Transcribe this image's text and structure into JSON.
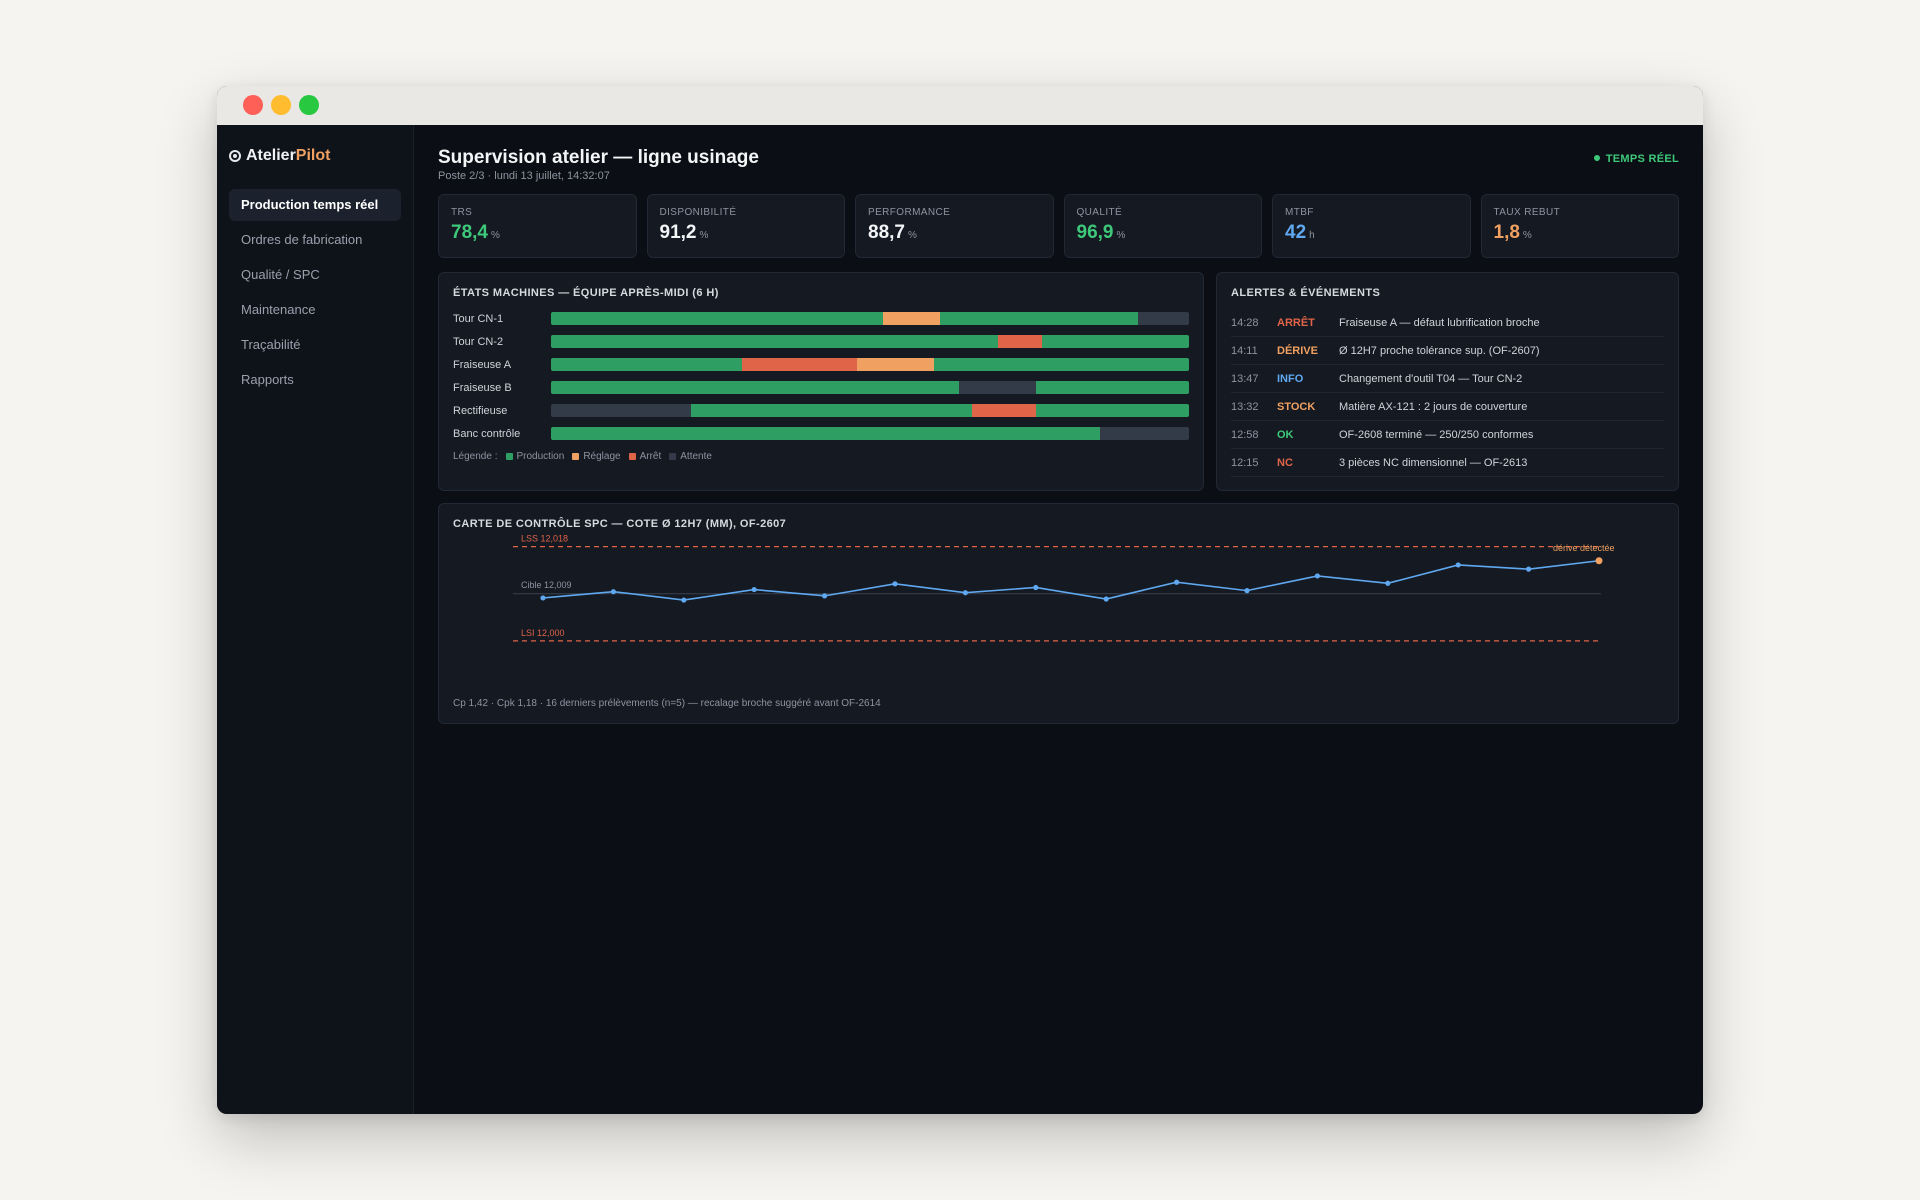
{
  "brand": {
    "name_a": "Atelier",
    "name_b": "Pilot"
  },
  "nav": [
    {
      "label": "Production temps réel",
      "active": true
    },
    {
      "label": "Ordres de fabrication",
      "active": false
    },
    {
      "label": "Qualité / SPC",
      "active": false
    },
    {
      "label": "Maintenance",
      "active": false
    },
    {
      "label": "Traçabilité",
      "active": false
    },
    {
      "label": "Rapports",
      "active": false
    }
  ],
  "header": {
    "title": "Supervision atelier — ligne usinage",
    "subtitle": "Poste 2/3 · lundi 13 juillet, 14:32:07",
    "live": "TEMPS RÉEL"
  },
  "kpis": [
    {
      "label": "TRS",
      "value": "78,4",
      "unit": "%",
      "color": "#3ec97a"
    },
    {
      "label": "Disponibilité",
      "value": "91,2",
      "unit": "%",
      "color": "#f4f5f7"
    },
    {
      "label": "Performance",
      "value": "88,7",
      "unit": "%",
      "color": "#f4f5f7"
    },
    {
      "label": "Qualité",
      "value": "96,9",
      "unit": "%",
      "color": "#3ec97a"
    },
    {
      "label": "MTBF",
      "value": "42",
      "unit": "h",
      "color": "#60a8f0"
    },
    {
      "label": "Taux rebut",
      "value": "1,8",
      "unit": "%",
      "color": "#f0a060"
    }
  ],
  "machines": {
    "title": "États machines — équipe après-midi (6 h)",
    "colors": {
      "production": "#2e9e62",
      "reglage": "#f0a060",
      "arret": "#e06448",
      "attente": "#343b48"
    },
    "rows": [
      {
        "name": "Tour CN-1",
        "segments": [
          [
            "production",
            0.52
          ],
          [
            "reglage",
            0.09
          ],
          [
            "production",
            0.31
          ],
          [
            "attente",
            0.08
          ]
        ]
      },
      {
        "name": "Tour CN-2",
        "segments": [
          [
            "production",
            0.7
          ],
          [
            "arret",
            0.07
          ],
          [
            "production",
            0.23
          ]
        ]
      },
      {
        "name": "Fraiseuse A",
        "segments": [
          [
            "production",
            0.3
          ],
          [
            "arret",
            0.18
          ],
          [
            "reglage",
            0.12
          ],
          [
            "production",
            0.4
          ]
        ]
      },
      {
        "name": "Fraiseuse B",
        "segments": [
          [
            "production",
            0.64
          ],
          [
            "attente",
            0.12
          ],
          [
            "production",
            0.24
          ]
        ]
      },
      {
        "name": "Rectifieuse",
        "segments": [
          [
            "attente",
            0.22
          ],
          [
            "production",
            0.44
          ],
          [
            "arret",
            0.1
          ],
          [
            "production",
            0.24
          ]
        ]
      },
      {
        "name": "Banc contrôle",
        "segments": [
          [
            "production",
            0.86
          ],
          [
            "attente",
            0.14
          ]
        ]
      }
    ],
    "legend": {
      "prefix": "Légende :",
      "items": [
        {
          "key": "production",
          "label": "Production"
        },
        {
          "key": "reglage",
          "label": "Réglage"
        },
        {
          "key": "arret",
          "label": "Arrêt"
        },
        {
          "key": "attente",
          "label": "Attente"
        }
      ]
    }
  },
  "alerts": {
    "title": "Alertes & événements",
    "items": [
      {
        "time": "14:28",
        "tag": "ARRÊT",
        "color": "#e06448",
        "msg": "Fraiseuse A — défaut lubrification broche"
      },
      {
        "time": "14:11",
        "tag": "DÉRIVE",
        "color": "#f0a060",
        "msg": "Ø 12H7 proche tolérance sup. (OF-2607)"
      },
      {
        "time": "13:47",
        "tag": "INFO",
        "color": "#60a8f0",
        "msg": "Changement d'outil T04 — Tour CN-2"
      },
      {
        "time": "13:32",
        "tag": "STOCK",
        "color": "#f0a060",
        "msg": "Matière AX-121 : 2 jours de couverture"
      },
      {
        "time": "12:58",
        "tag": "OK",
        "color": "#3ec97a",
        "msg": "OF-2608 terminé — 250/250 conformes"
      },
      {
        "time": "12:15",
        "tag": "NC",
        "color": "#e06448",
        "msg": "3 pièces NC dimensionnel — OF-2613"
      }
    ]
  },
  "chart_data": {
    "type": "line",
    "title": "Carte de contrôle SPC — cote Ø 12H7 (mm), OF-2607",
    "ylim": [
      11.9975,
      12.0185
    ],
    "lss": {
      "value": 12.018,
      "label": "LSS 12,018"
    },
    "target": {
      "value": 12.009,
      "label": "Cible 12,009"
    },
    "lsi": {
      "value": 12.0,
      "label": "LSI 12,000"
    },
    "annotation": "dérive détectée",
    "series": [
      {
        "values": [
          12.0082,
          12.0094,
          12.0078,
          12.0098,
          12.0086,
          12.0109,
          12.0092,
          12.0102,
          12.008,
          12.0112,
          12.0096,
          12.0124,
          12.011,
          12.0145,
          12.0137,
          12.0153
        ]
      }
    ],
    "footer": "Cp 1,42 · Cpk 1,18 · 16 derniers prélèvements (n=5) — recalage broche suggéré avant OF-2614",
    "colors": {
      "line": "#60a8f0",
      "limit": "#e06448",
      "target": "#3a414d",
      "alert": "#f0a060"
    }
  }
}
